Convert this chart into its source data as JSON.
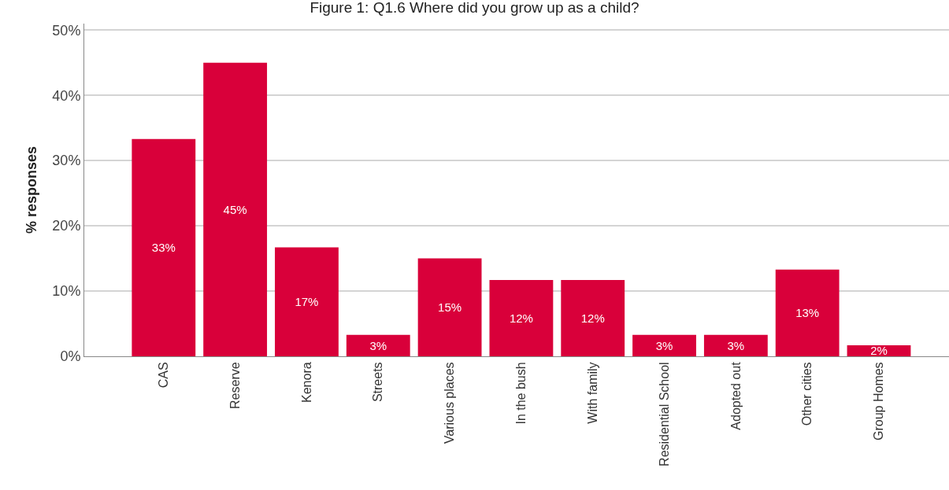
{
  "chart_data": {
    "type": "bar",
    "title": "Figure 1: Q1.6 Where did you grow up as a child?",
    "ylabel": "% responses",
    "categories": [
      "CAS",
      "Reserve",
      "Kenora",
      "Streets",
      "Various places",
      "In the bush",
      "With family",
      "Residential School",
      "Adopted out",
      "Other cities",
      "Group Homes"
    ],
    "values": [
      33.3,
      45,
      16.7,
      3.3,
      15,
      11.7,
      11.7,
      3.3,
      3.3,
      13.3,
      1.7
    ],
    "value_labels": [
      "33%",
      "45%",
      "17%",
      "3%",
      "15%",
      "12%",
      "12%",
      "3%",
      "3%",
      "13%",
      "2%"
    ],
    "color": "#d9003a",
    "ylim": [
      0,
      51
    ],
    "yticks": [
      {
        "value": 0,
        "label": "0%"
      },
      {
        "value": 10,
        "label": "10%"
      },
      {
        "value": 20,
        "label": "20%"
      },
      {
        "value": 30,
        "label": "30%"
      },
      {
        "value": 40,
        "label": "40%"
      },
      {
        "value": 50,
        "label": "50%"
      }
    ],
    "grid": "y",
    "legend": false
  }
}
